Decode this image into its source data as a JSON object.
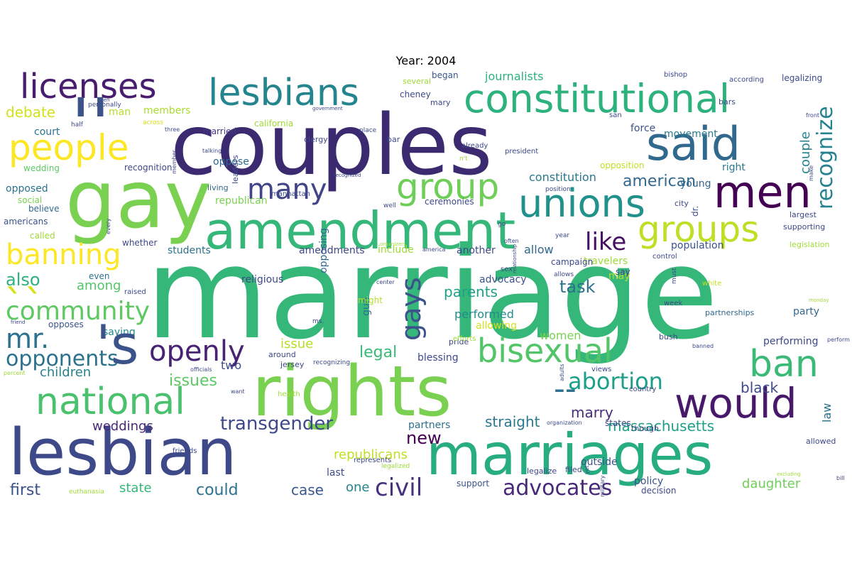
{
  "title": "Year: 2004",
  "palette": "viridis",
  "words": [
    {
      "text": "marriage",
      "color": "#35b779"
    },
    {
      "text": "couples",
      "color": "#3b2a70"
    },
    {
      "text": "gay",
      "color": "#7ad151"
    },
    {
      "text": "rights",
      "color": "#7ad151"
    },
    {
      "text": "lesbian",
      "color": "#3e4989"
    },
    {
      "text": "marriages",
      "color": "#27ad81"
    },
    {
      "text": "amendment",
      "color": "#35b779"
    },
    {
      "text": "constitutional",
      "color": "#2db27d"
    },
    {
      "text": "said",
      "color": "#31688e"
    },
    {
      "text": "men",
      "color": "#440154"
    },
    {
      "text": "would",
      "color": "#48186a"
    },
    {
      "text": "lesbians",
      "color": "#25858e"
    },
    {
      "text": "licenses",
      "color": "#481c6e"
    },
    {
      "text": "people",
      "color": "#fde725"
    },
    {
      "text": "unions",
      "color": "#21918c"
    },
    {
      "text": "groups",
      "color": "#bddf26"
    },
    {
      "text": "national",
      "color": "#4ac16d"
    },
    {
      "text": "bisexual",
      "color": "#52c569"
    },
    {
      "text": "ban",
      "color": "#3aba76"
    },
    {
      "text": "openly",
      "color": "#482374"
    },
    {
      "text": "banning",
      "color": "#fde725"
    },
    {
      "text": "group",
      "color": "#6ece58"
    },
    {
      "text": "many",
      "color": "#414487"
    },
    {
      "text": "community",
      "color": "#5ec962"
    },
    {
      "text": "gays",
      "color": "#3b528b"
    },
    {
      "text": "recognize",
      "color": "#26828e"
    },
    {
      "text": "civil",
      "color": "#46327e"
    },
    {
      "text": "advocates",
      "color": "#482878"
    },
    {
      "text": "abortion",
      "color": "#1f9e89"
    },
    {
      "text": "opponents",
      "color": "#2c728e"
    },
    {
      "text": "mr.",
      "color": "#2c728e"
    },
    {
      "text": "like",
      "color": "#471063"
    },
    {
      "text": "transgender",
      "color": "#3e4989"
    },
    {
      "text": "also",
      "color": "#2db27d"
    },
    {
      "text": "first",
      "color": "#3b528b"
    },
    {
      "text": "could",
      "color": "#2c728e"
    },
    {
      "text": "debate",
      "color": "#d2e21b"
    },
    {
      "text": "american",
      "color": "#31688e"
    },
    {
      "text": "massachusetts",
      "color": "#1f9e89"
    },
    {
      "text": "task",
      "color": "#2c728e"
    },
    {
      "text": "parents",
      "color": "#1fa188"
    },
    {
      "text": "new",
      "color": "#440154"
    },
    {
      "text": "weddings",
      "color": "#482878"
    },
    {
      "text": "straight",
      "color": "#2a788e"
    },
    {
      "text": "marry",
      "color": "#472d7b"
    },
    {
      "text": "couple",
      "color": "#25858e"
    },
    {
      "text": "children",
      "color": "#26828e"
    },
    {
      "text": "issues",
      "color": "#5ec962"
    },
    {
      "text": "legal",
      "color": "#3aba76"
    },
    {
      "text": "case",
      "color": "#38588c"
    },
    {
      "text": "state",
      "color": "#35b779"
    },
    {
      "text": "daughter",
      "color": "#6ece58"
    },
    {
      "text": "one",
      "color": "#25858e"
    },
    {
      "text": "law",
      "color": "#2c728e"
    },
    {
      "text": "black",
      "color": "#3e4989"
    },
    {
      "text": "issue",
      "color": "#b5de2b"
    },
    {
      "text": "policy",
      "color": "#3b528b"
    },
    {
      "text": "republicans",
      "color": "#c2df23"
    },
    {
      "text": "among",
      "color": "#52c569"
    },
    {
      "text": "court",
      "color": "#2c728e"
    },
    {
      "text": "allow",
      "color": "#31688e"
    },
    {
      "text": "constitution",
      "color": "#2a788e"
    },
    {
      "text": "performed",
      "color": "#228c8d"
    },
    {
      "text": "right",
      "color": "#2a788e"
    },
    {
      "text": "movement",
      "color": "#2a788e"
    },
    {
      "text": "opposed",
      "color": "#2c728e"
    },
    {
      "text": "journalists",
      "color": "#2db27d"
    },
    {
      "text": "members",
      "color": "#aadc32"
    },
    {
      "text": "women",
      "color": "#7ad151"
    },
    {
      "text": "students",
      "color": "#2c728e"
    },
    {
      "text": "saying",
      "color": "#228c8d"
    },
    {
      "text": "allowing",
      "color": "#d8e219"
    },
    {
      "text": "force",
      "color": "#3b528b"
    },
    {
      "text": "may",
      "color": "#b5de2b"
    },
    {
      "text": "young",
      "color": "#31688e"
    },
    {
      "text": "last",
      "color": "#3e4989"
    },
    {
      "text": "two",
      "color": "#3e4989"
    },
    {
      "text": "population",
      "color": "#3b528b"
    },
    {
      "text": "travelers",
      "color": "#a0da39"
    },
    {
      "text": "party",
      "color": "#31688e"
    },
    {
      "text": "performing",
      "color": "#3e4989"
    },
    {
      "text": "outside",
      "color": "#3b528b"
    },
    {
      "text": "partners",
      "color": "#2c728e"
    },
    {
      "text": "gun",
      "color": "#2c728e"
    },
    {
      "text": "opposing",
      "color": "#31688e"
    },
    {
      "text": "blessing",
      "color": "#3e4989"
    },
    {
      "text": "amendments",
      "color": "#3e4989"
    },
    {
      "text": "include",
      "color": "#a0da39"
    },
    {
      "text": "another",
      "color": "#3e4989"
    },
    {
      "text": "advocacy",
      "color": "#3b528b"
    },
    {
      "text": "religious",
      "color": "#3e4989"
    },
    {
      "text": "opposition",
      "color": "#c2df23"
    },
    {
      "text": "man",
      "color": "#b5de2b"
    },
    {
      "text": "republican",
      "color": "#7ad151"
    },
    {
      "text": "oppose",
      "color": "#31688e"
    },
    {
      "text": "recognition",
      "color": "#3e4989"
    },
    {
      "text": "married",
      "color": "#443983"
    },
    {
      "text": "ceremonies",
      "color": "#3e4989"
    },
    {
      "text": "campaign",
      "color": "#3e4989"
    },
    {
      "text": "even",
      "color": "#2c728e"
    },
    {
      "text": "whether",
      "color": "#3e4989"
    },
    {
      "text": "called",
      "color": "#a0da39"
    },
    {
      "text": "social",
      "color": "#7ad151"
    },
    {
      "text": "believe",
      "color": "#31688e"
    },
    {
      "text": "americans",
      "color": "#3b528b"
    },
    {
      "text": "opposes",
      "color": "#3b528b"
    },
    {
      "text": "wedding",
      "color": "#5ec962"
    },
    {
      "text": "might",
      "color": "#b5de2b"
    },
    {
      "text": "support",
      "color": "#3b528b"
    },
    {
      "text": "decision",
      "color": "#3e4989"
    },
    {
      "text": "legalizing",
      "color": "#3e4989"
    },
    {
      "text": "began",
      "color": "#3b528b"
    },
    {
      "text": "cheney",
      "color": "#3e4989"
    },
    {
      "text": "say",
      "color": "#3e4989"
    },
    {
      "text": "partnerships",
      "color": "#31688e"
    },
    {
      "text": "allowed",
      "color": "#3e4989"
    },
    {
      "text": "bars",
      "color": "#3e4989"
    },
    {
      "text": "around",
      "color": "#3e4989"
    },
    {
      "text": "jersey",
      "color": "#3e4989"
    },
    {
      "text": "pride",
      "color": "#3e4989"
    },
    {
      "text": "bush",
      "color": "#3e4989"
    },
    {
      "text": "legalize",
      "color": "#3e4989"
    },
    {
      "text": "filed",
      "color": "#3e4989"
    },
    {
      "text": "supporting",
      "color": "#3e4989"
    },
    {
      "text": "largest",
      "color": "#3e4989"
    },
    {
      "text": "legislation",
      "color": "#a0da39"
    },
    {
      "text": "california",
      "color": "#a0da39"
    },
    {
      "text": "several",
      "color": "#a0da39"
    },
    {
      "text": "according",
      "color": "#3e4989"
    },
    {
      "text": "city",
      "color": "#3e4989"
    },
    {
      "text": "dr.",
      "color": "#3e4989"
    },
    {
      "text": "clergy",
      "color": "#3e4989"
    },
    {
      "text": "president",
      "color": "#3e4989"
    },
    {
      "text": "manhattan",
      "color": "#3e4989"
    },
    {
      "text": "living",
      "color": "#31688e"
    },
    {
      "text": "leaders",
      "color": "#3e4989"
    },
    {
      "text": "bar",
      "color": "#3e4989"
    },
    {
      "text": "already",
      "color": "#3e4989"
    },
    {
      "text": "mary",
      "color": "#3e4989"
    },
    {
      "text": "bishop",
      "color": "#3e4989"
    },
    {
      "text": "must",
      "color": "#3e4989"
    },
    {
      "text": "white",
      "color": "#c2df23"
    },
    {
      "text": "week",
      "color": "#3e4989"
    },
    {
      "text": "views",
      "color": "#3e4989"
    },
    {
      "text": "country",
      "color": "#3e4989"
    },
    {
      "text": "though",
      "color": "#3e4989"
    },
    {
      "text": "states",
      "color": "#3e4989"
    },
    {
      "text": "represents",
      "color": "#3e4989"
    },
    {
      "text": "legalized",
      "color": "#a0da39"
    },
    {
      "text": "euthanasia",
      "color": "#a0da39"
    },
    {
      "text": "friends",
      "color": "#3e4989"
    },
    {
      "text": "health",
      "color": "#a0da39"
    },
    {
      "text": "recognizing",
      "color": "#3e4989"
    },
    {
      "text": "raised",
      "color": "#3e4989"
    },
    {
      "text": "efforts",
      "color": "#a0da39"
    },
    {
      "text": "sex",
      "color": "#3e4989"
    },
    {
      "text": "allows",
      "color": "#3e4989"
    },
    {
      "text": "control",
      "color": "#3e4989"
    },
    {
      "text": "personally",
      "color": "#3e4989"
    },
    {
      "text": "across",
      "color": "#d8e219"
    },
    {
      "text": "three",
      "color": "#3e4989"
    },
    {
      "text": "member",
      "color": "#3e4989"
    },
    {
      "text": "talking",
      "color": "#3e4989"
    },
    {
      "text": "place",
      "color": "#3e4989"
    },
    {
      "text": "government",
      "color": "#3e4989"
    },
    {
      "text": "recognized",
      "color": "#3e4989"
    },
    {
      "text": "position",
      "color": "#3e4989"
    },
    {
      "text": "san",
      "color": "#3e4989"
    },
    {
      "text": "front",
      "color": "#3e4989"
    },
    {
      "text": "make",
      "color": "#3e4989"
    },
    {
      "text": "year",
      "color": "#3e4989"
    },
    {
      "text": "often",
      "color": "#3e4989"
    },
    {
      "text": "america",
      "color": "#3e4989"
    },
    {
      "text": "organizers",
      "color": "#a0da39"
    },
    {
      "text": "every",
      "color": "#3e4989"
    },
    {
      "text": "well",
      "color": "#3e4989"
    },
    {
      "text": "go",
      "color": "#3e4989"
    },
    {
      "text": "center",
      "color": "#3e4989"
    },
    {
      "text": "relationship",
      "color": "#3e4989"
    },
    {
      "text": "ms.",
      "color": "#3e4989"
    },
    {
      "text": "friend",
      "color": "#3e4989"
    },
    {
      "text": "percent",
      "color": "#a0da39"
    },
    {
      "text": "officials",
      "color": "#3e4989"
    },
    {
      "text": "want",
      "color": "#3e4989"
    },
    {
      "text": "adults",
      "color": "#3e4989"
    },
    {
      "text": "organization",
      "color": "#3e4989"
    },
    {
      "text": "military",
      "color": "#3e4989"
    },
    {
      "text": "yet",
      "color": "#3e4989"
    },
    {
      "text": "excluding",
      "color": "#a0da39"
    },
    {
      "text": "bill",
      "color": "#3e4989"
    },
    {
      "text": "perform",
      "color": "#3e4989"
    },
    {
      "text": "monday",
      "color": "#a0da39"
    },
    {
      "text": "banned",
      "color": "#3e4989"
    },
    {
      "text": "half",
      "color": "#3e4989"
    },
    {
      "text": "open",
      "color": "#3e4989"
    },
    {
      "text": "n't",
      "color": "#a0da39"
    },
    {
      "text": "''",
      "color": "#3b528b"
    },
    {
      "text": "'s",
      "color": "#3b528b"
    },
    {
      "text": "``",
      "color": "#d8e219"
    },
    {
      "text": "--",
      "color": "#2c728e"
    }
  ]
}
